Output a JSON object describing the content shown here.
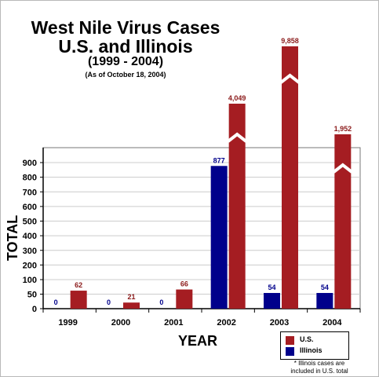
{
  "colors": {
    "us": "#a51d22",
    "illinois": "#00008b",
    "us_label": "#8b1a1a",
    "il_label": "#00008b",
    "axis": "#000000",
    "grid": "#cccccc",
    "plot_border": "#777777"
  },
  "chart_data": {
    "type": "bar",
    "title": "West Nile Virus Cases",
    "subtitle_lines": [
      "U.S. and Illinois",
      "(1999 - 2004)",
      "(As of October 18, 2004)"
    ],
    "xlabel": "YEAR",
    "ylabel": "TOTAL",
    "categories": [
      "1999",
      "2000",
      "2001",
      "2002",
      "2003",
      "2004"
    ],
    "series": [
      {
        "name": "Illinois",
        "values": [
          0,
          0,
          0,
          877,
          54,
          54
        ],
        "labels": [
          "0",
          "0",
          "0",
          "877",
          "54",
          "54"
        ]
      },
      {
        "name": "U.S.",
        "values": [
          62,
          21,
          66,
          4049,
          9858,
          1952
        ],
        "labels": [
          "62",
          "21",
          "66",
          "4,049",
          "9,858",
          "1,952"
        ]
      }
    ],
    "yticks": [
      0,
      50,
      100,
      200,
      300,
      400,
      500,
      600,
      700,
      800,
      900
    ],
    "ytick_labels": [
      "0",
      "50",
      "100",
      "200",
      "300",
      "400",
      "500",
      "600",
      "700",
      "800",
      "900"
    ],
    "ylim": [
      0,
      1000
    ],
    "axis_break": true,
    "grid": true,
    "legend_position": "bottom-right",
    "legend": [
      "U.S.",
      "Illinois"
    ],
    "footnote_lines": [
      "* Illinois cases are",
      "included in U.S. total"
    ]
  }
}
